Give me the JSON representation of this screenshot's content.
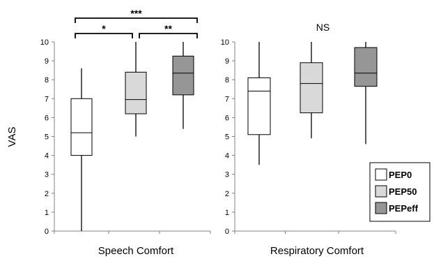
{
  "chart_data": {
    "type": "box",
    "ylabel": "VAS",
    "ylim": [
      0,
      10
    ],
    "yticks": [
      "0",
      "1",
      "2",
      "3",
      "4",
      "5",
      "6",
      "7",
      "8",
      "9",
      "10"
    ],
    "legend": {
      "placement": "bottom-right",
      "entries": [
        {
          "name": "PEP0",
          "color": "#ffffff"
        },
        {
          "name": "PEP50",
          "color": "#d9d9d9"
        },
        {
          "name": "PEPeff",
          "color": "#969696"
        }
      ]
    },
    "panels": [
      {
        "category": "Speech Comfort",
        "annotation": "",
        "groups": [
          {
            "series": "PEP0",
            "min": 0,
            "q1": 4.0,
            "median": 5.2,
            "q3": 7.0,
            "max": 8.6
          },
          {
            "series": "PEP50",
            "min": 5.0,
            "q1": 6.2,
            "median": 6.95,
            "q3": 8.4,
            "max": 10.0
          },
          {
            "series": "PEPeff",
            "min": 5.4,
            "q1": 7.2,
            "median": 8.35,
            "q3": 9.25,
            "max": 10.0
          }
        ],
        "significance": [
          {
            "from": "PEP0",
            "to": "PEPeff",
            "label": "***"
          },
          {
            "from": "PEP0",
            "to": "PEP50",
            "label": "*"
          },
          {
            "from": "PEP50",
            "to": "PEPeff",
            "label": "**"
          }
        ]
      },
      {
        "category": "Respiratory Comfort",
        "annotation": "NS",
        "groups": [
          {
            "series": "PEP0",
            "min": 3.5,
            "q1": 5.1,
            "median": 7.4,
            "q3": 8.1,
            "max": 10.0
          },
          {
            "series": "PEP50",
            "min": 4.9,
            "q1": 6.25,
            "median": 7.8,
            "q3": 8.9,
            "max": 10.0
          },
          {
            "series": "PEPeff",
            "min": 4.6,
            "q1": 7.65,
            "median": 8.35,
            "q3": 9.7,
            "max": 10.0
          }
        ],
        "significance": []
      }
    ]
  }
}
